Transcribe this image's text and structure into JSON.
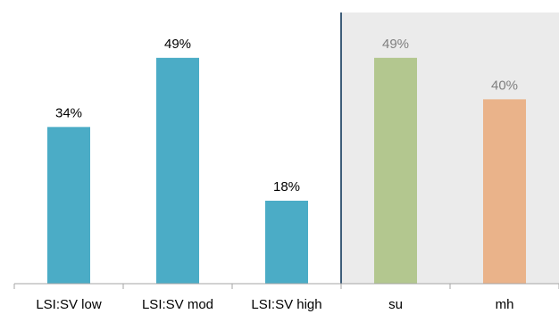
{
  "chart_data": {
    "type": "bar",
    "categories": [
      "LSI:SV low",
      "LSI:SV mod",
      "LSI:SV high",
      "su",
      "mh"
    ],
    "values": [
      34,
      49,
      18,
      49,
      40
    ],
    "value_labels": [
      "34%",
      "49%",
      "18%",
      "49%",
      "40%"
    ],
    "bar_colors": [
      "#4BACC6",
      "#4BACC6",
      "#4BACC6",
      "#B3C78F",
      "#EAB38A"
    ],
    "label_colors": [
      "#000000",
      "#000000",
      "#000000",
      "#7F7F7F",
      "#7F7F7F"
    ],
    "ylim": [
      0,
      60
    ],
    "grid": false,
    "shaded_region": {
      "categories": [
        "su",
        "mh"
      ],
      "color": "#EBEBEB",
      "divider_color": "#3F5E7A"
    }
  }
}
